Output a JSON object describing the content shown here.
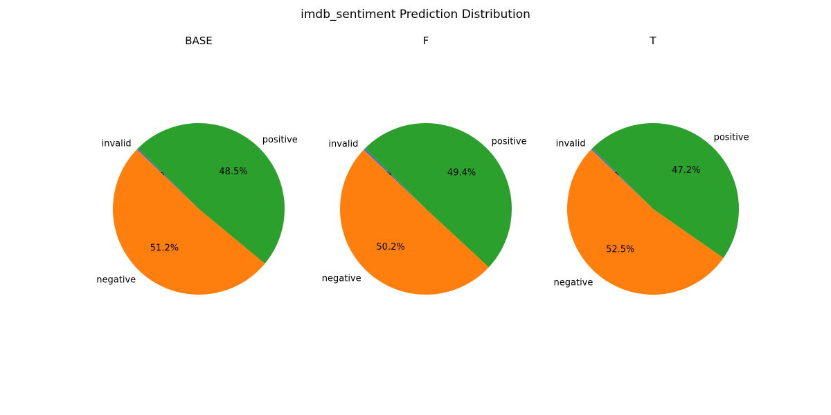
{
  "figure_title": "imdb_sentiment Prediction Distribution",
  "colors": {
    "invalid": "#4472c4",
    "negative": "#ff7f0e",
    "positive": "#2ca02c"
  },
  "chart_data": [
    {
      "type": "pie",
      "title": "BASE",
      "slices": [
        {
          "label": "invalid",
          "value": 0.3,
          "pct_label": "0.3%"
        },
        {
          "label": "negative",
          "value": 51.2,
          "pct_label": "51.2%"
        },
        {
          "label": "positive",
          "value": 48.5,
          "pct_label": "48.5%"
        }
      ]
    },
    {
      "type": "pie",
      "title": "F",
      "slices": [
        {
          "label": "invalid",
          "value": 0.4,
          "pct_label": "0.4%"
        },
        {
          "label": "negative",
          "value": 50.2,
          "pct_label": "50.2%"
        },
        {
          "label": "positive",
          "value": 49.4,
          "pct_label": "49.4%"
        }
      ]
    },
    {
      "type": "pie",
      "title": "T",
      "slices": [
        {
          "label": "invalid",
          "value": 0.3,
          "pct_label": "0.3%"
        },
        {
          "label": "negative",
          "value": 52.5,
          "pct_label": "52.5%"
        },
        {
          "label": "positive",
          "value": 47.2,
          "pct_label": "47.2%"
        }
      ]
    }
  ]
}
